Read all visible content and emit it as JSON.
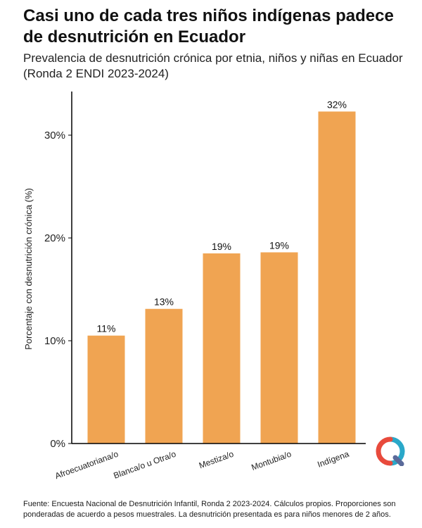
{
  "header": {
    "title": "Casi uno de cada tres niños indígenas padece de desnutrición en Ecuador",
    "subtitle": "Prevalencia de desnutrición crónica por etnia, niños y niñas en Ecuador (Ronda 2 ENDI 2023-2024)"
  },
  "chart_data": {
    "type": "bar",
    "categories": [
      "Afroecuatoriana/o",
      "Blanca/o u Otra/o",
      "Mestiza/o",
      "Montubia/o",
      "Indígena"
    ],
    "values": [
      10.5,
      13.1,
      18.5,
      18.6,
      32.3
    ],
    "data_labels": [
      "11%",
      "13%",
      "19%",
      "19%",
      "32%"
    ],
    "ylabel": "Porcentaje con desnutrición crónica (%)",
    "xlabel": "",
    "ylim": [
      0,
      34
    ],
    "yticks": [
      0,
      10,
      20,
      30
    ],
    "ytick_labels": [
      "0%",
      "10%",
      "20%",
      "30%"
    ],
    "bar_color": "#f0a452",
    "grid": false,
    "legend": "none"
  },
  "footer": {
    "source": "Fuente: Encuesta Nacional de Desnutrición Infantil, Ronda 2 2023-2024. Cálculos propios. Proporciones son ponderadas de acuerdo a pesos muestrales. La desnutrición presentada es para niños menores de 2 años."
  },
  "logo": {
    "icon": "q-logo-icon",
    "colors": [
      "#2aa8c9",
      "#e84a3c",
      "#5a6a9a"
    ]
  }
}
